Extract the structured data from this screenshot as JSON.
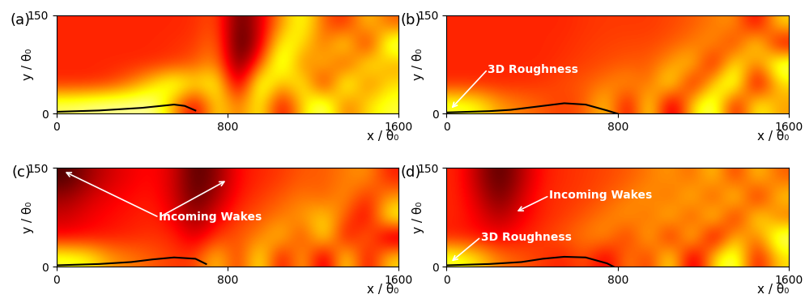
{
  "chart_data": [
    {
      "type": "heatmap",
      "title": "(a)",
      "x_label": "x / θ₀",
      "y_label": "y / θ₀",
      "xlim": [
        0,
        1600
      ],
      "ylim": [
        0,
        150
      ],
      "xticks": [
        0,
        800,
        1600
      ],
      "yticks": [
        0,
        150
      ],
      "annotations": [],
      "cells": [
        [
          0.85,
          0.88,
          0.9,
          0.9,
          0.9,
          0.6,
          0.3,
          0.75,
          0.5,
          0.8,
          0.3,
          0.7,
          0.9,
          0.5,
          0.7,
          0.8
        ],
        [
          0.42,
          0.42,
          0.45,
          0.55,
          0.7,
          0.85,
          0.7,
          0.8,
          0.2,
          0.9,
          0.6,
          0.8,
          0.3,
          0.9,
          0.5,
          0.7
        ],
        [
          0.42,
          0.42,
          0.42,
          0.42,
          0.43,
          0.45,
          0.5,
          0.6,
          0.1,
          0.5,
          0.9,
          0.5,
          0.7,
          0.4,
          0.8,
          0.6
        ],
        [
          0.42,
          0.42,
          0.42,
          0.42,
          0.42,
          0.43,
          0.45,
          0.55,
          0.05,
          0.3,
          0.8,
          0.7,
          0.5,
          0.8,
          0.3,
          0.9
        ],
        [
          0.42,
          0.42,
          0.42,
          0.42,
          0.42,
          0.42,
          0.43,
          0.5,
          0.1,
          0.3,
          0.6,
          0.8,
          0.5,
          0.4,
          0.7,
          0.5
        ]
      ],
      "contour": {
        "x": [
          0,
          200,
          400,
          550,
          600,
          650
        ],
        "y": [
          3,
          5,
          9,
          14,
          12,
          5
        ]
      }
    },
    {
      "type": "heatmap",
      "title": "(b)",
      "x_label": "x / θ₀",
      "y_label": "y / θ₀",
      "xlim": [
        0,
        1600
      ],
      "ylim": [
        0,
        150
      ],
      "xticks": [
        0,
        800,
        1600
      ],
      "yticks": [
        0,
        150
      ],
      "annotations": [
        "3D Roughness"
      ],
      "cells": [
        [
          0.8,
          0.75,
          0.6,
          0.55,
          0.5,
          0.45,
          0.5,
          0.7,
          0.3,
          0.8,
          0.2,
          0.7,
          0.9,
          0.3,
          0.8,
          0.6
        ],
        [
          0.42,
          0.42,
          0.42,
          0.43,
          0.45,
          0.48,
          0.5,
          0.55,
          0.6,
          0.5,
          0.8,
          0.3,
          0.7,
          0.9,
          0.2,
          0.7
        ],
        [
          0.42,
          0.42,
          0.42,
          0.42,
          0.42,
          0.44,
          0.46,
          0.48,
          0.5,
          0.5,
          0.6,
          0.7,
          0.3,
          0.8,
          0.5,
          0.9
        ],
        [
          0.42,
          0.42,
          0.42,
          0.42,
          0.42,
          0.43,
          0.45,
          0.46,
          0.47,
          0.47,
          0.5,
          0.55,
          0.6,
          0.4,
          0.8,
          0.3
        ],
        [
          0.42,
          0.42,
          0.42,
          0.42,
          0.42,
          0.42,
          0.44,
          0.45,
          0.45,
          0.45,
          0.47,
          0.5,
          0.55,
          0.6,
          0.3,
          0.7
        ]
      ],
      "contour": {
        "x": [
          0,
          200,
          300,
          450,
          550,
          650,
          750,
          800
        ],
        "y": [
          2,
          4,
          6,
          12,
          16,
          14,
          5,
          0
        ]
      }
    },
    {
      "type": "heatmap",
      "title": "(c)",
      "x_label": "x / θ₀",
      "y_label": "y / θ₀",
      "xlim": [
        0,
        1600
      ],
      "ylim": [
        0,
        150
      ],
      "xticks": [
        0,
        800,
        1600
      ],
      "yticks": [
        0,
        150
      ],
      "annotations": [
        "Incoming Wakes"
      ],
      "cells": [
        [
          0.8,
          0.75,
          0.6,
          0.55,
          0.5,
          0.45,
          0.45,
          0.7,
          0.4,
          0.8,
          0.3,
          0.7,
          0.2,
          0.8,
          0.3,
          0.7
        ],
        [
          0.36,
          0.38,
          0.4,
          0.42,
          0.44,
          0.42,
          0.3,
          0.45,
          0.5,
          0.55,
          0.7,
          0.4,
          0.8,
          0.3,
          0.6,
          0.2
        ],
        [
          0.3,
          0.35,
          0.38,
          0.4,
          0.42,
          0.35,
          0.2,
          0.35,
          0.45,
          0.5,
          0.55,
          0.6,
          0.7,
          0.5,
          0.3,
          0.8
        ],
        [
          0.22,
          0.3,
          0.35,
          0.38,
          0.4,
          0.3,
          0.12,
          0.25,
          0.4,
          0.45,
          0.5,
          0.55,
          0.5,
          0.6,
          0.4,
          0.6
        ],
        [
          0.1,
          0.22,
          0.3,
          0.35,
          0.38,
          0.3,
          0.1,
          0.2,
          0.38,
          0.42,
          0.45,
          0.5,
          0.5,
          0.55,
          0.6,
          0.4
        ]
      ],
      "contour": {
        "x": [
          0,
          200,
          350,
          450,
          550,
          650,
          700
        ],
        "y": [
          2,
          4,
          7,
          11,
          14,
          12,
          4
        ]
      }
    },
    {
      "type": "heatmap",
      "title": "(d)",
      "x_label": "x / θ₀",
      "y_label": "y / θ₀",
      "xlim": [
        0,
        1600
      ],
      "ylim": [
        0,
        150
      ],
      "xticks": [
        0,
        800,
        1600
      ],
      "yticks": [
        0,
        150
      ],
      "annotations": [
        "Incoming Wakes",
        "3D Roughness"
      ],
      "cells": [
        [
          0.8,
          0.7,
          0.55,
          0.5,
          0.45,
          0.4,
          0.5,
          0.3,
          0.6,
          0.4,
          0.8,
          0.2,
          0.7,
          0.9,
          0.3,
          0.7
        ],
        [
          0.4,
          0.38,
          0.35,
          0.4,
          0.45,
          0.5,
          0.55,
          0.6,
          0.4,
          0.7,
          0.3,
          0.8,
          0.2,
          0.7,
          0.5,
          0.9
        ],
        [
          0.42,
          0.35,
          0.25,
          0.35,
          0.42,
          0.45,
          0.5,
          0.55,
          0.6,
          0.5,
          0.7,
          0.4,
          0.8,
          0.3,
          0.8,
          0.5
        ],
        [
          0.42,
          0.3,
          0.15,
          0.3,
          0.42,
          0.44,
          0.46,
          0.5,
          0.55,
          0.6,
          0.5,
          0.7,
          0.4,
          0.8,
          0.3,
          0.7
        ],
        [
          0.42,
          0.25,
          0.1,
          0.25,
          0.4,
          0.43,
          0.45,
          0.47,
          0.5,
          0.55,
          0.6,
          0.5,
          0.7,
          0.4,
          0.7,
          0.5
        ]
      ],
      "contour": {
        "x": [
          0,
          200,
          350,
          450,
          550,
          650,
          750,
          780
        ],
        "y": [
          2,
          4,
          7,
          12,
          15,
          14,
          5,
          0
        ]
      }
    }
  ]
}
